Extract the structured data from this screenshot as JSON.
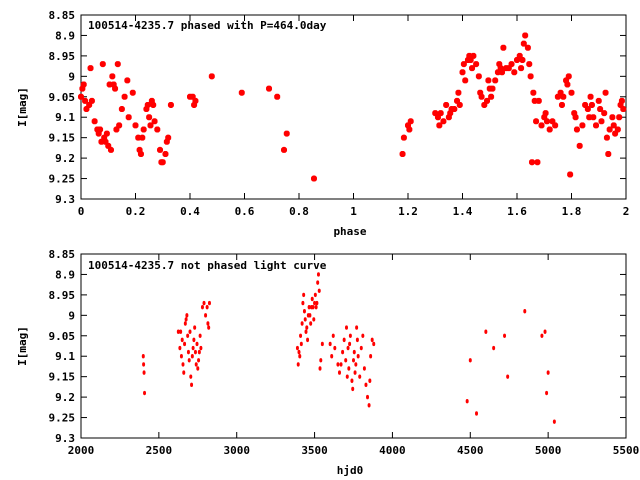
{
  "chart_data": [
    {
      "type": "scatter",
      "title": "100514-4235.7 phased with P=464.0day",
      "xlabel": "phase",
      "ylabel": "I[mag]",
      "xlim": [
        0,
        2
      ],
      "ylim": [
        8.85,
        9.3
      ],
      "y_inverted": true,
      "xticks": [
        "0",
        "0.2",
        "0.4",
        "0.6",
        "0.8",
        "1",
        "1.2",
        "1.4",
        "1.6",
        "1.8",
        "2"
      ],
      "yticks": [
        "8.85",
        "8.9",
        "8.95",
        "9",
        "9.05",
        "9.1",
        "9.15",
        "9.2",
        "9.25",
        "9.3"
      ],
      "marker_color": "#ff0000",
      "marker": "star",
      "grid": false,
      "points": [
        [
          0.0,
          9.05
        ],
        [
          0.005,
          9.03
        ],
        [
          0.01,
          9.02
        ],
        [
          0.015,
          9.06
        ],
        [
          0.02,
          9.08
        ],
        [
          0.03,
          9.07
        ],
        [
          0.035,
          8.98
        ],
        [
          0.04,
          9.06
        ],
        [
          0.05,
          9.11
        ],
        [
          0.06,
          9.13
        ],
        [
          0.065,
          9.14
        ],
        [
          0.07,
          9.13
        ],
        [
          0.075,
          9.16
        ],
        [
          0.08,
          8.97
        ],
        [
          0.085,
          9.15
        ],
        [
          0.09,
          9.16
        ],
        [
          0.095,
          9.14
        ],
        [
          0.1,
          9.17
        ],
        [
          0.105,
          9.02
        ],
        [
          0.11,
          9.18
        ],
        [
          0.115,
          9.0
        ],
        [
          0.12,
          9.02
        ],
        [
          0.125,
          9.03
        ],
        [
          0.13,
          9.13
        ],
        [
          0.135,
          8.97
        ],
        [
          0.14,
          9.12
        ],
        [
          0.15,
          9.08
        ],
        [
          0.16,
          9.05
        ],
        [
          0.17,
          9.01
        ],
        [
          0.175,
          9.1
        ],
        [
          0.19,
          9.04
        ],
        [
          0.2,
          9.12
        ],
        [
          0.21,
          9.15
        ],
        [
          0.215,
          9.18
        ],
        [
          0.22,
          9.19
        ],
        [
          0.225,
          9.15
        ],
        [
          0.23,
          9.13
        ],
        [
          0.24,
          9.08
        ],
        [
          0.245,
          9.07
        ],
        [
          0.25,
          9.1
        ],
        [
          0.255,
          9.12
        ],
        [
          0.26,
          9.06
        ],
        [
          0.265,
          9.07
        ],
        [
          0.27,
          9.11
        ],
        [
          0.28,
          9.13
        ],
        [
          0.29,
          9.18
        ],
        [
          0.295,
          9.21
        ],
        [
          0.3,
          9.21
        ],
        [
          0.31,
          9.19
        ],
        [
          0.315,
          9.16
        ],
        [
          0.32,
          9.15
        ],
        [
          0.33,
          9.07
        ],
        [
          0.4,
          9.05
        ],
        [
          0.41,
          9.05
        ],
        [
          0.415,
          9.07
        ],
        [
          0.42,
          9.06
        ],
        [
          0.48,
          9.0
        ],
        [
          0.59,
          9.04
        ],
        [
          0.69,
          9.03
        ],
        [
          0.72,
          9.05
        ],
        [
          0.745,
          9.18
        ],
        [
          0.755,
          9.14
        ],
        [
          0.855,
          9.25
        ],
        [
          1.18,
          9.19
        ],
        [
          1.185,
          9.15
        ],
        [
          1.2,
          9.12
        ],
        [
          1.205,
          9.13
        ],
        [
          1.21,
          9.11
        ],
        [
          1.3,
          9.09
        ],
        [
          1.31,
          9.1
        ],
        [
          1.315,
          9.12
        ],
        [
          1.32,
          9.09
        ],
        [
          1.33,
          9.11
        ],
        [
          1.34,
          9.07
        ],
        [
          1.35,
          9.1
        ],
        [
          1.355,
          9.09
        ],
        [
          1.36,
          9.08
        ],
        [
          1.37,
          9.08
        ],
        [
          1.38,
          9.06
        ],
        [
          1.385,
          9.04
        ],
        [
          1.39,
          9.07
        ],
        [
          1.4,
          8.99
        ],
        [
          1.405,
          8.97
        ],
        [
          1.41,
          9.01
        ],
        [
          1.42,
          8.96
        ],
        [
          1.425,
          8.95
        ],
        [
          1.43,
          8.96
        ],
        [
          1.435,
          8.98
        ],
        [
          1.44,
          8.95
        ],
        [
          1.45,
          8.97
        ],
        [
          1.46,
          9.0
        ],
        [
          1.465,
          9.04
        ],
        [
          1.47,
          9.05
        ],
        [
          1.48,
          9.07
        ],
        [
          1.49,
          9.06
        ],
        [
          1.495,
          9.01
        ],
        [
          1.5,
          9.03
        ],
        [
          1.505,
          9.05
        ],
        [
          1.51,
          9.03
        ],
        [
          1.52,
          9.01
        ],
        [
          1.53,
          8.99
        ],
        [
          1.535,
          8.97
        ],
        [
          1.54,
          8.98
        ],
        [
          1.545,
          8.99
        ],
        [
          1.55,
          8.93
        ],
        [
          1.56,
          8.98
        ],
        [
          1.57,
          8.98
        ],
        [
          1.58,
          8.97
        ],
        [
          1.59,
          8.99
        ],
        [
          1.6,
          8.96
        ],
        [
          1.61,
          8.95
        ],
        [
          1.615,
          8.98
        ],
        [
          1.62,
          8.96
        ],
        [
          1.625,
          8.92
        ],
        [
          1.63,
          8.9
        ],
        [
          1.64,
          8.93
        ],
        [
          1.645,
          8.97
        ],
        [
          1.65,
          9.0
        ],
        [
          1.655,
          9.21
        ],
        [
          1.66,
          9.04
        ],
        [
          1.665,
          9.06
        ],
        [
          1.67,
          9.11
        ],
        [
          1.675,
          9.21
        ],
        [
          1.68,
          9.06
        ],
        [
          1.69,
          9.12
        ],
        [
          1.7,
          9.1
        ],
        [
          1.705,
          9.09
        ],
        [
          1.71,
          9.11
        ],
        [
          1.72,
          9.13
        ],
        [
          1.73,
          9.11
        ],
        [
          1.74,
          9.12
        ],
        [
          1.75,
          9.05
        ],
        [
          1.76,
          9.04
        ],
        [
          1.765,
          9.07
        ],
        [
          1.77,
          9.05
        ],
        [
          1.78,
          9.01
        ],
        [
          1.785,
          9.02
        ],
        [
          1.79,
          9.0
        ],
        [
          1.795,
          9.24
        ],
        [
          1.8,
          9.04
        ],
        [
          1.81,
          9.09
        ],
        [
          1.815,
          9.1
        ],
        [
          1.82,
          9.13
        ],
        [
          1.83,
          9.17
        ],
        [
          1.84,
          9.12
        ],
        [
          1.85,
          9.07
        ],
        [
          1.86,
          9.08
        ],
        [
          1.865,
          9.1
        ],
        [
          1.87,
          9.05
        ],
        [
          1.875,
          9.07
        ],
        [
          1.88,
          9.1
        ],
        [
          1.89,
          9.12
        ],
        [
          1.9,
          9.06
        ],
        [
          1.905,
          9.08
        ],
        [
          1.91,
          9.11
        ],
        [
          1.92,
          9.09
        ],
        [
          1.925,
          9.04
        ],
        [
          1.93,
          9.15
        ],
        [
          1.935,
          9.19
        ],
        [
          1.94,
          9.13
        ],
        [
          1.95,
          9.1
        ],
        [
          1.955,
          9.12
        ],
        [
          1.96,
          9.14
        ],
        [
          1.97,
          9.13
        ],
        [
          1.975,
          9.1
        ],
        [
          1.98,
          9.07
        ],
        [
          1.985,
          9.06
        ],
        [
          1.99,
          9.08
        ]
      ]
    },
    {
      "type": "scatter",
      "title": "100514-4235.7 not phased light curve",
      "xlabel": "hjd0",
      "ylabel": "I[mag]",
      "xlim": [
        2000,
        5500
      ],
      "ylim": [
        8.85,
        9.3
      ],
      "y_inverted": true,
      "xticks": [
        "2000",
        "2500",
        "3000",
        "3500",
        "4000",
        "4500",
        "5000",
        "5500"
      ],
      "yticks": [
        "8.85",
        "8.9",
        "8.95",
        "9",
        "9.05",
        "9.1",
        "9.15",
        "9.2",
        "9.25",
        "9.3"
      ],
      "marker_color": "#ff0000",
      "marker": "dot",
      "grid": false,
      "points": [
        [
          2400,
          9.1
        ],
        [
          2402,
          9.12
        ],
        [
          2405,
          9.14
        ],
        [
          2408,
          9.19
        ],
        [
          2625,
          9.04
        ],
        [
          2635,
          9.08
        ],
        [
          2640,
          9.04
        ],
        [
          2645,
          9.1
        ],
        [
          2650,
          9.06
        ],
        [
          2655,
          9.12
        ],
        [
          2660,
          9.14
        ],
        [
          2665,
          9.07
        ],
        [
          2670,
          9.02
        ],
        [
          2675,
          9.01
        ],
        [
          2680,
          9.0
        ],
        [
          2685,
          9.05
        ],
        [
          2690,
          9.09
        ],
        [
          2695,
          9.11
        ],
        [
          2700,
          9.04
        ],
        [
          2705,
          9.15
        ],
        [
          2710,
          9.17
        ],
        [
          2715,
          9.1
        ],
        [
          2720,
          9.08
        ],
        [
          2725,
          9.06
        ],
        [
          2730,
          9.03
        ],
        [
          2735,
          9.09
        ],
        [
          2740,
          9.12
        ],
        [
          2745,
          9.07
        ],
        [
          2750,
          9.13
        ],
        [
          2755,
          9.11
        ],
        [
          2760,
          9.09
        ],
        [
          2765,
          9.05
        ],
        [
          2770,
          9.08
        ],
        [
          2780,
          8.98
        ],
        [
          2790,
          8.97
        ],
        [
          2800,
          9.0
        ],
        [
          2810,
          8.98
        ],
        [
          2815,
          9.02
        ],
        [
          2820,
          9.03
        ],
        [
          2825,
          8.97
        ],
        [
          3390,
          9.08
        ],
        [
          3395,
          9.12
        ],
        [
          3400,
          9.09
        ],
        [
          3405,
          9.1
        ],
        [
          3410,
          9.05
        ],
        [
          3415,
          9.07
        ],
        [
          3420,
          9.02
        ],
        [
          3425,
          8.97
        ],
        [
          3430,
          8.95
        ],
        [
          3435,
          8.99
        ],
        [
          3440,
          9.01
        ],
        [
          3445,
          9.04
        ],
        [
          3450,
          9.03
        ],
        [
          3455,
          9.06
        ],
        [
          3460,
          9.0
        ],
        [
          3465,
          8.98
        ],
        [
          3470,
          9.0
        ],
        [
          3475,
          9.02
        ],
        [
          3480,
          8.98
        ],
        [
          3485,
          8.96
        ],
        [
          3490,
          8.98
        ],
        [
          3495,
          9.01
        ],
        [
          3500,
          8.97
        ],
        [
          3505,
          8.95
        ],
        [
          3510,
          8.98
        ],
        [
          3515,
          8.97
        ],
        [
          3520,
          8.92
        ],
        [
          3525,
          8.9
        ],
        [
          3530,
          8.94
        ],
        [
          3535,
          9.13
        ],
        [
          3540,
          9.11
        ],
        [
          3550,
          9.07
        ],
        [
          3600,
          9.07
        ],
        [
          3610,
          9.1
        ],
        [
          3620,
          9.05
        ],
        [
          3630,
          9.08
        ],
        [
          3650,
          9.12
        ],
        [
          3660,
          9.14
        ],
        [
          3670,
          9.12
        ],
        [
          3680,
          9.09
        ],
        [
          3690,
          9.06
        ],
        [
          3700,
          9.11
        ],
        [
          3705,
          9.03
        ],
        [
          3710,
          9.15
        ],
        [
          3715,
          9.08
        ],
        [
          3720,
          9.13
        ],
        [
          3725,
          9.07
        ],
        [
          3730,
          9.05
        ],
        [
          3740,
          9.16
        ],
        [
          3745,
          9.18
        ],
        [
          3750,
          9.11
        ],
        [
          3755,
          9.09
        ],
        [
          3760,
          9.14
        ],
        [
          3765,
          9.12
        ],
        [
          3770,
          9.03
        ],
        [
          3775,
          9.06
        ],
        [
          3780,
          9.1
        ],
        [
          3790,
          9.15
        ],
        [
          3800,
          9.08
        ],
        [
          3810,
          9.05
        ],
        [
          3820,
          9.13
        ],
        [
          3830,
          9.17
        ],
        [
          3840,
          9.2
        ],
        [
          3850,
          9.22
        ],
        [
          3855,
          9.16
        ],
        [
          3860,
          9.1
        ],
        [
          3870,
          9.06
        ],
        [
          3880,
          9.07
        ],
        [
          4480,
          9.21
        ],
        [
          4500,
          9.11
        ],
        [
          4540,
          9.24
        ],
        [
          4600,
          9.04
        ],
        [
          4650,
          9.08
        ],
        [
          4720,
          9.05
        ],
        [
          4740,
          9.15
        ],
        [
          4850,
          8.99
        ],
        [
          4960,
          9.05
        ],
        [
          4980,
          9.04
        ],
        [
          4990,
          9.19
        ],
        [
          5000,
          9.14
        ],
        [
          5040,
          9.26
        ]
      ]
    }
  ]
}
